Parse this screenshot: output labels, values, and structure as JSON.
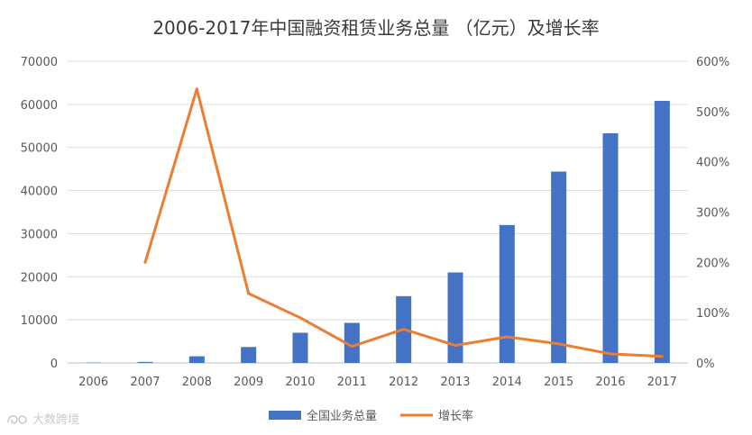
{
  "chart_data": {
    "type": "bar+line",
    "title": "2006-2017年中国融资租赁业务总量 （亿元）及增长率",
    "categories": [
      "2006",
      "2007",
      "2008",
      "2009",
      "2010",
      "2011",
      "2012",
      "2013",
      "2014",
      "2015",
      "2016",
      "2017"
    ],
    "series": [
      {
        "name": "全国业务总量",
        "type": "bar",
        "axis": "left",
        "color": "#4472C4",
        "values": [
          80,
          240,
          1550,
          3700,
          7000,
          9300,
          15500,
          21000,
          32000,
          44400,
          53300,
          60800
        ]
      },
      {
        "name": "增长率",
        "type": "line",
        "axis": "right",
        "color": "#ED7D31",
        "values": [
          null,
          200,
          545,
          138,
          90,
          33,
          67,
          35,
          52,
          38,
          18,
          13
        ]
      }
    ],
    "y_left": {
      "min": 0,
      "max": 70000,
      "ticks": [
        0,
        10000,
        20000,
        30000,
        40000,
        50000,
        60000,
        70000
      ]
    },
    "y_right": {
      "min": 0,
      "max": 600,
      "ticks": [
        "0%",
        "100%",
        "200%",
        "300%",
        "400%",
        "500%",
        "600%"
      ]
    },
    "grid": true,
    "legend": "bottom-center"
  },
  "watermark": {
    "text": "大数跨境",
    "icon": "logo-swirl-icon"
  }
}
